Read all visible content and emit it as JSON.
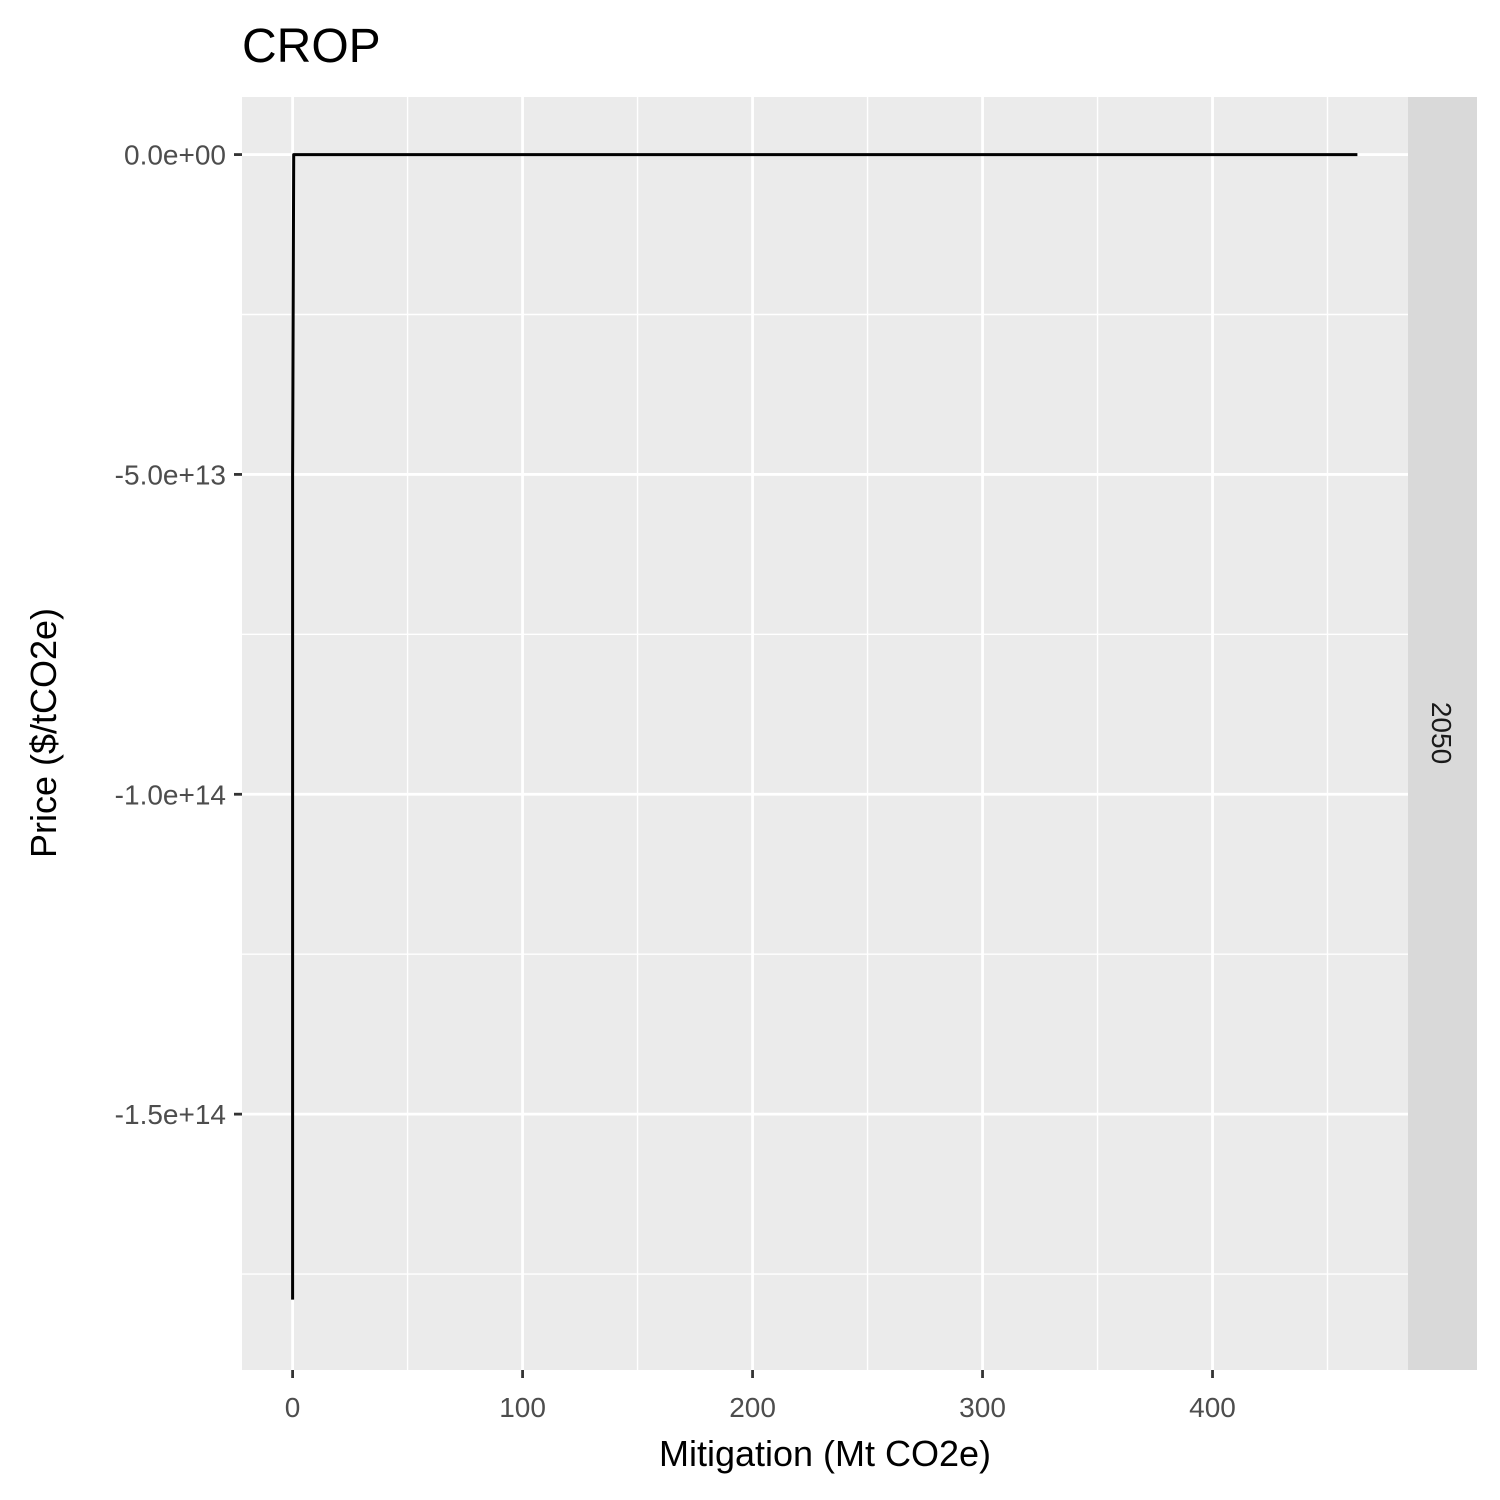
{
  "chart_data": {
    "type": "line",
    "title": "CROP",
    "xlabel": "Mitigation (Mt CO2e)",
    "ylabel": "Price ($/tCO2e)",
    "facet_label": "2050",
    "xlim": [
      -22,
      485
    ],
    "ylim": [
      -190000000000000.0,
      9000000000000.0
    ],
    "x_ticks": [
      {
        "value": 0,
        "label": "0"
      },
      {
        "value": 100,
        "label": "100"
      },
      {
        "value": 200,
        "label": "200"
      },
      {
        "value": 300,
        "label": "300"
      },
      {
        "value": 400,
        "label": "400"
      }
    ],
    "x_minor_ticks": [
      50,
      150,
      250,
      350,
      450
    ],
    "y_ticks": [
      {
        "value": 0,
        "label": "0.0e+00"
      },
      {
        "value": -50000000000000.0,
        "label": "-5.0e+13"
      },
      {
        "value": -100000000000000.0,
        "label": "-1.0e+14"
      },
      {
        "value": -150000000000000.0,
        "label": "-1.5e+14"
      }
    ],
    "y_minor_ticks": [
      -25000000000000.0,
      -75000000000000.0,
      -125000000000000.0,
      -175000000000000.0
    ],
    "grid": true,
    "colors": {
      "panel": "#ebebeb",
      "grid": "#ffffff",
      "strip": "#d9d9d9",
      "line": "#000000"
    },
    "series": [
      {
        "x": [
          0,
          0,
          0.5,
          100,
          200,
          300,
          400,
          463
        ],
        "y": [
          -179000000000000.0,
          -50000000000000.0,
          0,
          0,
          0,
          0,
          0,
          0
        ]
      }
    ]
  }
}
